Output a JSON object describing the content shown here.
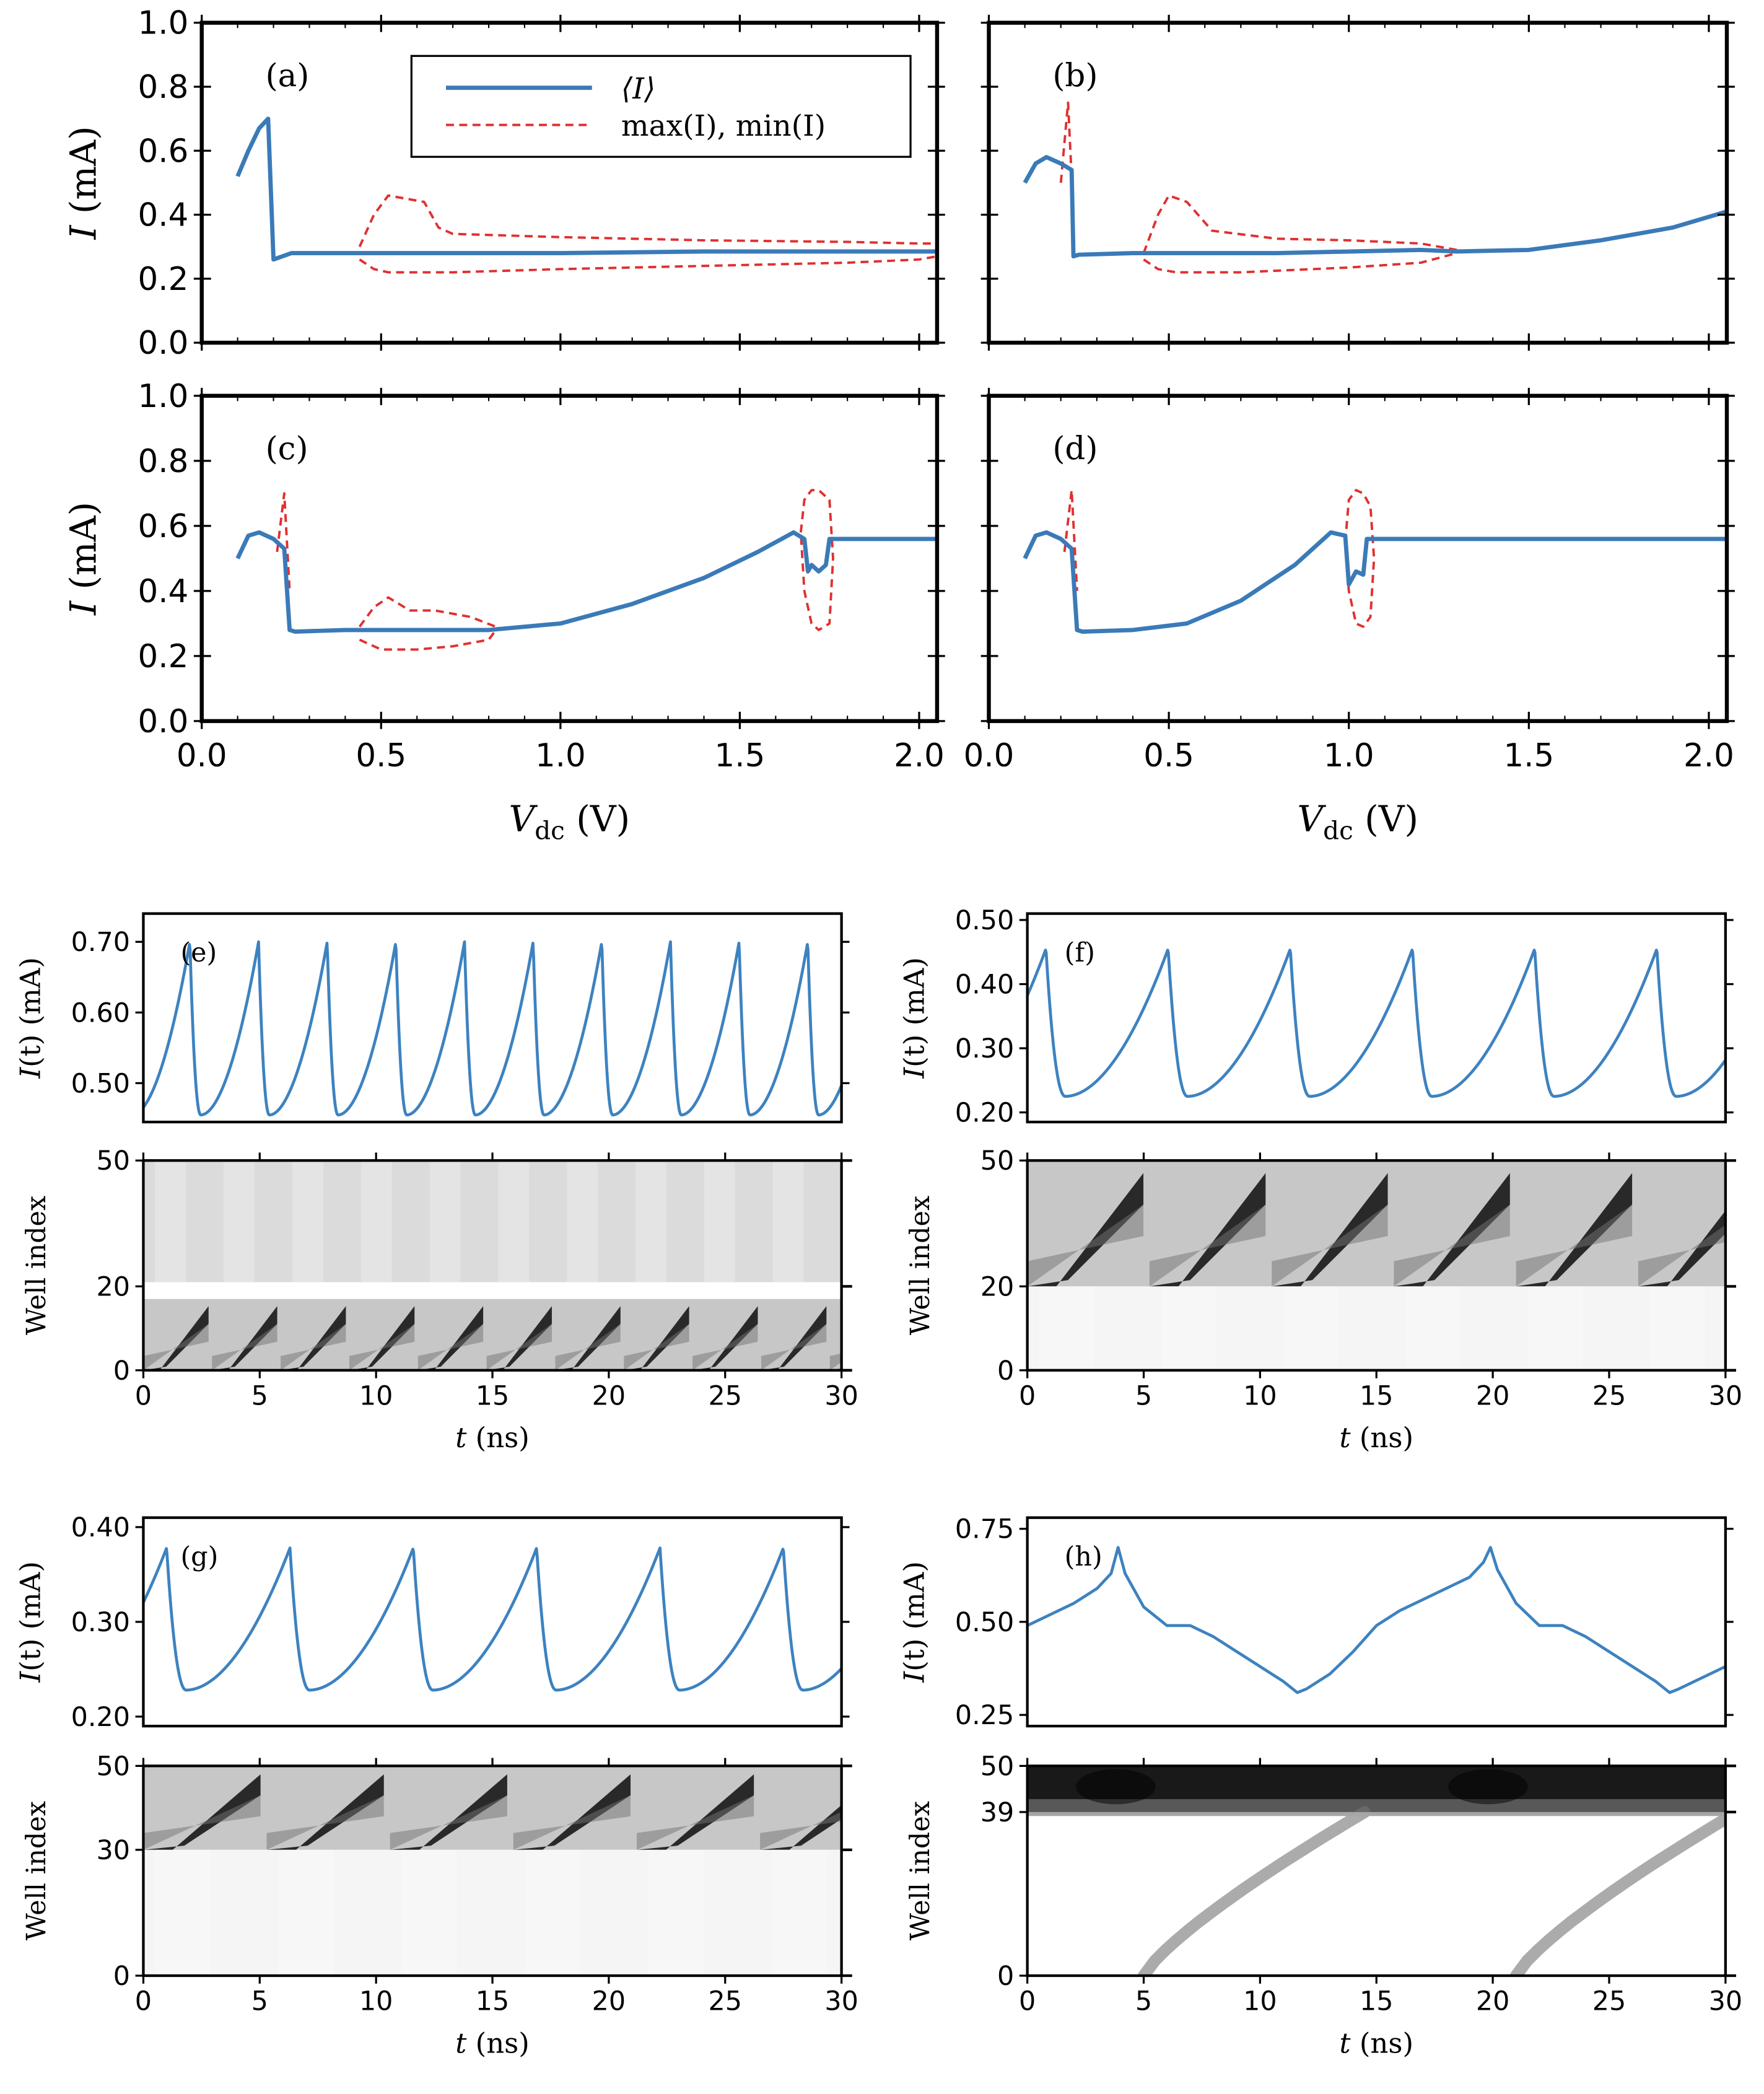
{
  "chart_data": [
    {
      "id": "a",
      "type": "line",
      "panel_label": "(a)",
      "ylabel": "I (mA)",
      "xlabel": "",
      "xlim": [
        0.0,
        2.05
      ],
      "ylim": [
        0.0,
        1.0
      ],
      "yticks": [
        "0.0",
        "0.2",
        "0.4",
        "0.6",
        "0.8",
        "1.0"
      ],
      "xticks": [],
      "legend": {
        "placement": "top-center",
        "entries": [
          "⟨I⟩",
          "max(I), min(I)"
        ]
      },
      "series": [
        {
          "name": "mean",
          "style": "solid",
          "x": [
            0.1,
            0.13,
            0.16,
            0.185,
            0.2,
            0.25,
            0.4,
            0.6,
            1.0,
            1.4,
            1.8,
            2.05
          ],
          "y": [
            0.52,
            0.6,
            0.67,
            0.7,
            0.26,
            0.28,
            0.28,
            0.28,
            0.28,
            0.285,
            0.285,
            0.285
          ]
        },
        {
          "name": "max",
          "style": "dashed",
          "x": [
            0.44,
            0.48,
            0.52,
            0.62,
            0.66,
            0.7,
            1.0,
            1.4,
            1.8,
            2.0,
            2.05
          ],
          "y": [
            0.3,
            0.4,
            0.46,
            0.44,
            0.36,
            0.34,
            0.33,
            0.32,
            0.315,
            0.31,
            0.31
          ]
        },
        {
          "name": "min",
          "style": "dashed",
          "x": [
            0.44,
            0.48,
            0.52,
            0.7,
            1.0,
            1.4,
            1.8,
            2.0,
            2.05
          ],
          "y": [
            0.26,
            0.23,
            0.22,
            0.22,
            0.23,
            0.24,
            0.25,
            0.26,
            0.27
          ]
        }
      ]
    },
    {
      "id": "b",
      "type": "line",
      "panel_label": "(b)",
      "ylabel": "",
      "xlabel": "",
      "xlim": [
        0.0,
        2.05
      ],
      "ylim": [
        0.0,
        1.0
      ],
      "yticks": [],
      "xticks": [],
      "series": [
        {
          "name": "mean",
          "style": "solid",
          "x": [
            0.1,
            0.13,
            0.16,
            0.2,
            0.23,
            0.235,
            0.25,
            0.4,
            0.8,
            1.2,
            1.3,
            1.5,
            1.7,
            1.9,
            2.05
          ],
          "y": [
            0.5,
            0.56,
            0.58,
            0.56,
            0.54,
            0.27,
            0.275,
            0.28,
            0.28,
            0.29,
            0.285,
            0.29,
            0.32,
            0.36,
            0.41
          ]
        },
        {
          "name": "max-left",
          "style": "dashed",
          "x": [
            0.2,
            0.22,
            0.235
          ],
          "y": [
            0.5,
            0.75,
            0.4
          ]
        },
        {
          "name": "max",
          "style": "dashed",
          "x": [
            0.43,
            0.47,
            0.5,
            0.55,
            0.62,
            0.8,
            1.0,
            1.2,
            1.3
          ],
          "y": [
            0.28,
            0.4,
            0.46,
            0.44,
            0.35,
            0.325,
            0.32,
            0.31,
            0.29
          ]
        },
        {
          "name": "min",
          "style": "dashed",
          "x": [
            0.43,
            0.47,
            0.52,
            0.7,
            1.0,
            1.2,
            1.3
          ],
          "y": [
            0.26,
            0.23,
            0.22,
            0.22,
            0.235,
            0.25,
            0.28
          ]
        }
      ]
    },
    {
      "id": "c",
      "type": "line",
      "panel_label": "(c)",
      "ylabel": "I (mA)",
      "xlabel": "V_dc (V)",
      "xlim": [
        0.0,
        2.05
      ],
      "ylim": [
        0.0,
        1.0
      ],
      "yticks": [
        "0.0",
        "0.2",
        "0.4",
        "0.6",
        "0.8",
        "1.0"
      ],
      "xticks": [
        "0.0",
        "0.5",
        "1.0",
        "1.5",
        "2.0"
      ],
      "series": [
        {
          "name": "mean",
          "style": "solid",
          "x": [
            0.1,
            0.13,
            0.16,
            0.2,
            0.23,
            0.245,
            0.26,
            0.4,
            0.8,
            1.0,
            1.2,
            1.4,
            1.55,
            1.65,
            1.68,
            1.69,
            1.7,
            1.72,
            1.74,
            1.75,
            1.8,
            2.05
          ],
          "y": [
            0.5,
            0.57,
            0.58,
            0.56,
            0.53,
            0.28,
            0.275,
            0.28,
            0.28,
            0.3,
            0.36,
            0.44,
            0.52,
            0.58,
            0.56,
            0.46,
            0.48,
            0.46,
            0.48,
            0.56,
            0.56,
            0.56
          ]
        },
        {
          "name": "max-left",
          "style": "dashed",
          "x": [
            0.21,
            0.23,
            0.245
          ],
          "y": [
            0.52,
            0.7,
            0.4
          ]
        },
        {
          "name": "max",
          "style": "dashed",
          "x": [
            0.44,
            0.48,
            0.52,
            0.58,
            0.65,
            0.75,
            0.82
          ],
          "y": [
            0.29,
            0.35,
            0.38,
            0.34,
            0.34,
            0.32,
            0.29
          ]
        },
        {
          "name": "min",
          "style": "dashed",
          "x": [
            0.44,
            0.5,
            0.6,
            0.7,
            0.8,
            0.82
          ],
          "y": [
            0.25,
            0.22,
            0.22,
            0.23,
            0.25,
            0.28
          ]
        },
        {
          "name": "loop",
          "style": "dashed",
          "x": [
            1.67,
            1.68,
            1.7,
            1.72,
            1.75,
            1.76,
            1.75,
            1.72,
            1.7,
            1.68,
            1.67
          ],
          "y": [
            0.58,
            0.68,
            0.71,
            0.71,
            0.68,
            0.5,
            0.3,
            0.28,
            0.3,
            0.4,
            0.58
          ]
        }
      ]
    },
    {
      "id": "d",
      "type": "line",
      "panel_label": "(d)",
      "ylabel": "",
      "xlabel": "V_dc (V)",
      "xlim": [
        0.0,
        2.05
      ],
      "ylim": [
        0.0,
        1.0
      ],
      "yticks": [],
      "xticks": [
        "0.0",
        "0.5",
        "1.0",
        "1.5",
        "2.0"
      ],
      "series": [
        {
          "name": "mean",
          "style": "solid",
          "x": [
            0.1,
            0.13,
            0.16,
            0.2,
            0.23,
            0.245,
            0.26,
            0.4,
            0.55,
            0.7,
            0.85,
            0.95,
            0.99,
            1.0,
            1.02,
            1.04,
            1.05,
            1.1,
            2.05
          ],
          "y": [
            0.5,
            0.57,
            0.58,
            0.56,
            0.53,
            0.28,
            0.275,
            0.28,
            0.3,
            0.37,
            0.48,
            0.58,
            0.57,
            0.42,
            0.46,
            0.45,
            0.56,
            0.56,
            0.56
          ]
        },
        {
          "name": "max-left",
          "style": "dashed",
          "x": [
            0.21,
            0.23,
            0.245
          ],
          "y": [
            0.52,
            0.71,
            0.4
          ]
        },
        {
          "name": "loop",
          "style": "dashed",
          "x": [
            0.99,
            1.0,
            1.02,
            1.04,
            1.06,
            1.07,
            1.06,
            1.04,
            1.02,
            1.0,
            0.99
          ],
          "y": [
            0.55,
            0.68,
            0.71,
            0.7,
            0.66,
            0.5,
            0.32,
            0.29,
            0.3,
            0.4,
            0.55
          ]
        }
      ]
    },
    {
      "id": "e",
      "type": "line",
      "panel_label": "(e)",
      "ylabel": "I(t) (mA)",
      "xlim": [
        0,
        30
      ],
      "ylim": [
        0.445,
        0.74
      ],
      "yticks": [
        "0.50",
        "0.60",
        "0.70"
      ],
      "period": 2.95,
      "peak_first": 2.0,
      "ymin": 0.455,
      "ymax": 0.7
    },
    {
      "id": "e-map",
      "type": "heatmap",
      "ylabel": "Well index",
      "xlabel": "t (ns)",
      "xlim": [
        0,
        30
      ],
      "ylim": [
        0,
        50
      ],
      "yticks": [
        "0",
        "20",
        "50"
      ],
      "xticks": [
        "0",
        "5",
        "10",
        "15",
        "20",
        "25",
        "30"
      ],
      "bands": [
        {
          "from": 21,
          "to": 50,
          "kind": "faint",
          "darkness": 0.14
        },
        {
          "from": 0,
          "to": 17,
          "kind": "stripes",
          "period": 2.95,
          "darkness": 0.95
        }
      ]
    },
    {
      "id": "f",
      "type": "line",
      "panel_label": "(f)",
      "ylabel": "I(t) (mA)",
      "xlim": [
        0,
        30
      ],
      "ylim": [
        0.185,
        0.51
      ],
      "yticks": [
        "0.20",
        "0.30",
        "0.40",
        "0.50"
      ],
      "period": 5.25,
      "peak_first": 0.8,
      "ymin": 0.225,
      "ymax": 0.455
    },
    {
      "id": "f-map",
      "type": "heatmap",
      "ylabel": "Well index",
      "xlabel": "t (ns)",
      "xlim": [
        0,
        30
      ],
      "ylim": [
        0,
        50
      ],
      "yticks": [
        "0",
        "20",
        "50"
      ],
      "xticks": [
        "0",
        "5",
        "10",
        "15",
        "20",
        "25",
        "30"
      ],
      "bands": [
        {
          "from": 20,
          "to": 50,
          "kind": "stripes",
          "period": 5.25,
          "darkness": 0.95
        },
        {
          "from": 0,
          "to": 20,
          "kind": "faint",
          "darkness": 0.04
        }
      ]
    },
    {
      "id": "g",
      "type": "line",
      "panel_label": "(g)",
      "ylabel": "I(t) (mA)",
      "xlim": [
        0,
        30
      ],
      "ylim": [
        0.19,
        0.41
      ],
      "yticks": [
        "0.20",
        "0.30",
        "0.40"
      ],
      "period": 5.3,
      "peak_first": 1.0,
      "ymin": 0.228,
      "ymax": 0.378
    },
    {
      "id": "g-map",
      "type": "heatmap",
      "ylabel": "Well index",
      "xlabel": "t (ns)",
      "xlim": [
        0,
        30
      ],
      "ylim": [
        0,
        50
      ],
      "yticks": [
        "0",
        "30",
        "50"
      ],
      "xticks": [
        "0",
        "5",
        "10",
        "15",
        "20",
        "25",
        "30"
      ],
      "bands": [
        {
          "from": 30,
          "to": 50,
          "kind": "stripes",
          "period": 5.3,
          "darkness": 0.95
        },
        {
          "from": 0,
          "to": 30,
          "kind": "faint",
          "darkness": 0.04
        }
      ]
    },
    {
      "id": "h",
      "type": "line",
      "panel_label": "(h)",
      "ylabel": "I(t) (mA)",
      "xlim": [
        0,
        30
      ],
      "ylim": [
        0.22,
        0.78
      ],
      "yticks": [
        "0.25",
        "0.50",
        "0.75"
      ],
      "x": [
        0,
        1,
        2,
        3,
        3.6,
        3.9,
        4.2,
        5,
        6,
        7,
        8,
        9,
        10,
        11,
        11.6,
        12,
        13,
        14,
        15,
        16,
        17,
        18,
        19,
        19.6,
        19.9,
        20.2,
        21,
        22,
        23,
        24,
        25,
        26,
        27,
        27.6,
        28,
        29,
        30
      ],
      "y": [
        0.49,
        0.52,
        0.55,
        0.59,
        0.63,
        0.7,
        0.63,
        0.54,
        0.49,
        0.49,
        0.46,
        0.42,
        0.38,
        0.34,
        0.31,
        0.32,
        0.36,
        0.42,
        0.49,
        0.53,
        0.56,
        0.59,
        0.62,
        0.66,
        0.7,
        0.64,
        0.55,
        0.49,
        0.49,
        0.46,
        0.42,
        0.38,
        0.34,
        0.31,
        0.32,
        0.35,
        0.38
      ]
    },
    {
      "id": "h-map",
      "type": "heatmap",
      "ylabel": "Well index",
      "xlabel": "t (ns)",
      "xlim": [
        0,
        30
      ],
      "ylim": [
        0,
        50
      ],
      "yticks": [
        "0",
        "39",
        "50"
      ],
      "xticks": [
        "0",
        "5",
        "10",
        "15",
        "20",
        "25",
        "30"
      ],
      "bands": [
        {
          "from": 39,
          "to": 50,
          "kind": "solid",
          "darkness": 0.9
        },
        {
          "from": 0,
          "to": 39,
          "kind": "fronts",
          "starts": [
            3.5,
            19.5
          ],
          "darkness": 0.55
        }
      ]
    }
  ],
  "colors": {
    "mean": "#3a7ab8",
    "minmax": "#e03030",
    "trace": "#3d82c0",
    "axis": "#000000"
  }
}
